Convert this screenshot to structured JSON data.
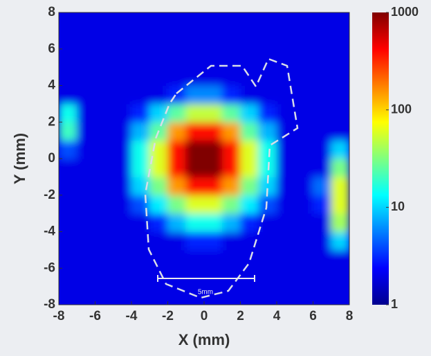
{
  "chart_data": {
    "type": "heatmap",
    "xlabel": "X (mm)",
    "ylabel": "Y (mm)",
    "x": [
      -7.5,
      -6.5,
      -5.5,
      -4.5,
      -3.5,
      -2.5,
      -1.5,
      -0.5,
      0.5,
      1.5,
      2.5,
      3.5,
      4.5,
      5.5,
      6.5,
      7.5
    ],
    "y": [
      -7.5,
      -6.5,
      -5.5,
      -4.5,
      -3.5,
      -2.5,
      -1.5,
      -0.5,
      0.5,
      1.5,
      2.5,
      3.5,
      4.5,
      5.5,
      6.5,
      7.5
    ],
    "z": [
      [
        2,
        2,
        2,
        2,
        2,
        2,
        2,
        2,
        2,
        2,
        2,
        2,
        2,
        2,
        2,
        2
      ],
      [
        2,
        2,
        2,
        2,
        2,
        2,
        2,
        2,
        2,
        2,
        2,
        2,
        2,
        2,
        2,
        2
      ],
      [
        2,
        2,
        2,
        2,
        2,
        2,
        2,
        2,
        2,
        2,
        2,
        2,
        2,
        2,
        2,
        2
      ],
      [
        2,
        2,
        2,
        2,
        2,
        2,
        2,
        3,
        3,
        2,
        2,
        2,
        2,
        2,
        2,
        10
      ],
      [
        2,
        2,
        2,
        2,
        2,
        3,
        8,
        15,
        15,
        8,
        3,
        2,
        2,
        2,
        2,
        40
      ],
      [
        2,
        2,
        2,
        2,
        4,
        12,
        30,
        60,
        60,
        30,
        12,
        4,
        2,
        2,
        3,
        60
      ],
      [
        2,
        2,
        2,
        2,
        10,
        30,
        150,
        400,
        400,
        150,
        30,
        10,
        2,
        2,
        5,
        60
      ],
      [
        2,
        2,
        2,
        2,
        15,
        60,
        400,
        1000,
        1000,
        400,
        60,
        15,
        2,
        2,
        2,
        30
      ],
      [
        4,
        2,
        2,
        2,
        15,
        60,
        400,
        1000,
        1000,
        400,
        60,
        15,
        2,
        2,
        2,
        10
      ],
      [
        20,
        2,
        2,
        2,
        8,
        25,
        150,
        400,
        400,
        150,
        25,
        8,
        2,
        2,
        2,
        2
      ],
      [
        15,
        2,
        2,
        2,
        3,
        10,
        25,
        50,
        50,
        25,
        10,
        3,
        2,
        2,
        2,
        2
      ],
      [
        2,
        2,
        2,
        2,
        2,
        2,
        3,
        6,
        6,
        3,
        2,
        2,
        2,
        2,
        2,
        2
      ],
      [
        2,
        2,
        2,
        2,
        2,
        2,
        2,
        2,
        2,
        2,
        2,
        2,
        2,
        2,
        2,
        2
      ],
      [
        2,
        2,
        2,
        2,
        2,
        2,
        2,
        2,
        2,
        2,
        2,
        2,
        2,
        2,
        2,
        2
      ],
      [
        2,
        2,
        2,
        2,
        2,
        2,
        2,
        2,
        2,
        2,
        2,
        2,
        2,
        2,
        2,
        2
      ],
      [
        2,
        2,
        2,
        2,
        2,
        2,
        2,
        2,
        2,
        2,
        2,
        2,
        2,
        2,
        2,
        2
      ]
    ],
    "xlim": [
      -8,
      8
    ],
    "ylim": [
      -8,
      8
    ],
    "xticks": [
      -8,
      -6,
      -4,
      -2,
      0,
      2,
      4,
      6,
      8
    ],
    "yticks": [
      -8,
      -6,
      -4,
      -2,
      0,
      2,
      4,
      6,
      8
    ],
    "clim": [
      1,
      1000
    ],
    "color_scale": "log",
    "colormap": "jet",
    "cticks": [
      1,
      10,
      100,
      1000
    ],
    "scale_bar_label": "5mm"
  }
}
